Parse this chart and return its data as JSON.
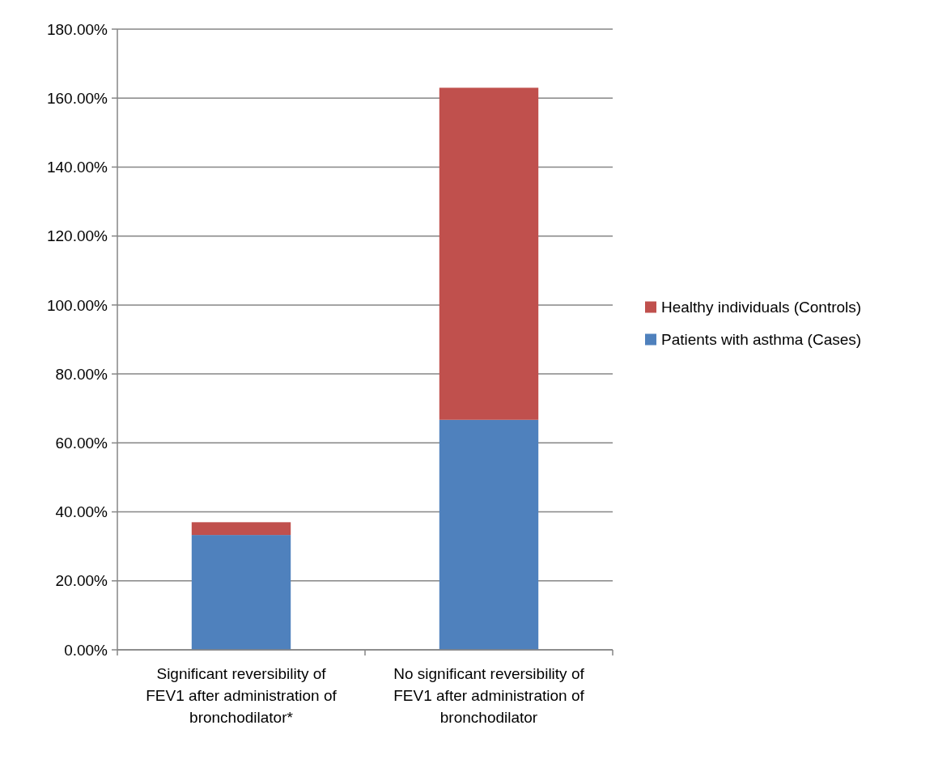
{
  "chart_data": {
    "type": "bar",
    "stacked": true,
    "categories": [
      "Significant reversibility of FEV1 after administration of bronchodilator*",
      "No significant reversibility of FEV1 after administration of bronchodilator"
    ],
    "series": [
      {
        "name": "Patients with asthma (Cases)",
        "color": "#4f81bd",
        "values": [
          33.3,
          66.7
        ]
      },
      {
        "name": "Healthy individuals (Controls)",
        "color": "#c0504d",
        "values": [
          3.7,
          96.3
        ]
      }
    ],
    "ylim": [
      0,
      180
    ],
    "yticks": [
      {
        "value": 0,
        "label": "0.00%"
      },
      {
        "value": 20,
        "label": "20.00%"
      },
      {
        "value": 40,
        "label": "40.00%"
      },
      {
        "value": 60,
        "label": "60.00%"
      },
      {
        "value": 80,
        "label": "80.00%"
      },
      {
        "value": 100,
        "label": "100.00%"
      },
      {
        "value": 120,
        "label": "120.00%"
      },
      {
        "value": 140,
        "label": "140.00%"
      },
      {
        "value": 160,
        "label": "160.00%"
      },
      {
        "value": 180,
        "label": "180.00%"
      }
    ],
    "grid": "y",
    "legend": "right"
  }
}
